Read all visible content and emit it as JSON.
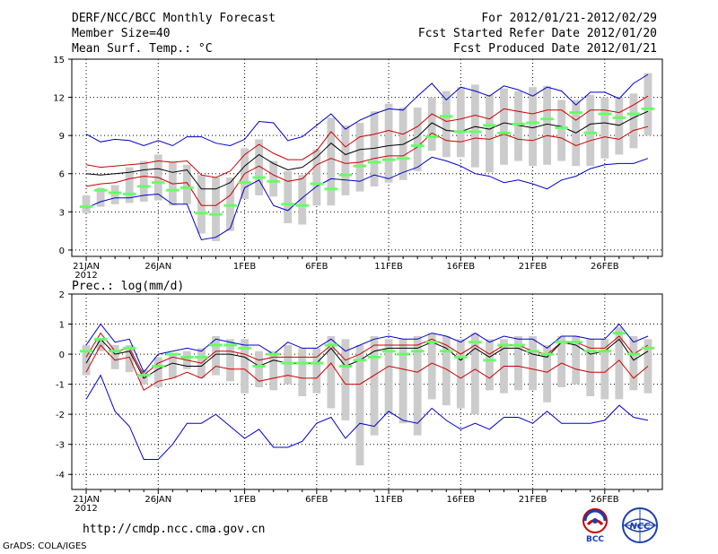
{
  "header": {
    "title": "DERF/NCC/BCC Monthly Forecast",
    "member_size": "Member Size=40",
    "variable1": "Mean Surf. Temp.: °C",
    "period": "For 2012/01/21-2012/02/29",
    "started": "Fcst Started Refer Date 2012/01/20",
    "produced": "Fcst Produced Date 2012/01/21"
  },
  "variable2": "Prec.: log(mm/d)",
  "footer": {
    "url": "http://cmdp.ncc.cma.gov.cn",
    "credit": "GrADS: COLA/IGES"
  },
  "logos": {
    "left": "BCC",
    "right": "NCC"
  },
  "colors": {
    "envelope": "#0000cc",
    "spread": "#cc0000",
    "mean": "#000000",
    "box": "#cccccc",
    "median": "#66ff66",
    "grid": "#000000"
  },
  "chart_data": [
    {
      "type": "ensemble-boxplot",
      "title": "Mean Surf. Temp.: °C",
      "ylim": [
        -0.5,
        15
      ],
      "yticks": [
        0,
        3,
        6,
        9,
        12,
        15
      ],
      "xlabels": [
        "21JAN",
        "26JAN",
        "1FEB",
        "6FEB",
        "11FEB",
        "16FEB",
        "21FEB",
        "26FEB"
      ],
      "xlabel_index": [
        0,
        5,
        11,
        16,
        21,
        26,
        31,
        36
      ],
      "year_label": "2012",
      "days": 40,
      "max": [
        9.1,
        8.5,
        8.7,
        8.6,
        8.2,
        8.6,
        8.2,
        8.9,
        8.9,
        8.4,
        8.2,
        8.7,
        10.1,
        10.0,
        8.6,
        8.9,
        9.8,
        10.7,
        9.5,
        10.2,
        10.7,
        11.1,
        11.0,
        12.1,
        13.1,
        11.8,
        12.8,
        12.5,
        12.1,
        12.9,
        12.6,
        12.1,
        12.8,
        12.5,
        11.4,
        12.4,
        12.4,
        11.9,
        13.1,
        13.8
      ],
      "upper": [
        6.7,
        6.5,
        6.6,
        6.7,
        6.8,
        7.0,
        6.9,
        7.0,
        5.9,
        5.7,
        6.2,
        7.5,
        8.3,
        7.6,
        7.1,
        7.1,
        7.8,
        9.3,
        8.1,
        8.9,
        9.1,
        9.4,
        9.1,
        9.7,
        10.7,
        10.1,
        10.3,
        10.6,
        10.3,
        11.1,
        10.9,
        10.7,
        11.0,
        11.0,
        10.2,
        11.0,
        11.0,
        10.8,
        11.4,
        12.1
      ],
      "mean": [
        6.0,
        5.9,
        6.0,
        6.1,
        6.3,
        6.4,
        6.1,
        6.3,
        4.8,
        4.8,
        5.3,
        6.6,
        7.5,
        6.8,
        6.3,
        6.5,
        7.3,
        8.4,
        7.5,
        7.9,
        8.0,
        8.2,
        8.3,
        8.9,
        10.0,
        9.4,
        9.3,
        9.7,
        9.5,
        10.0,
        9.8,
        9.6,
        9.9,
        9.7,
        9.2,
        9.9,
        10.0,
        9.8,
        10.4,
        10.9
      ],
      "lower": [
        5.0,
        5.2,
        5.3,
        5.6,
        5.8,
        5.7,
        5.2,
        5.3,
        3.5,
        3.5,
        4.3,
        6.0,
        6.6,
        5.9,
        5.4,
        5.6,
        6.7,
        7.2,
        6.8,
        6.9,
        7.2,
        7.4,
        7.4,
        8.1,
        9.2,
        8.6,
        8.5,
        8.8,
        8.7,
        9.1,
        8.7,
        8.6,
        9.0,
        8.8,
        8.2,
        8.6,
        8.9,
        8.7,
        9.4,
        9.7
      ],
      "min": [
        3.3,
        3.8,
        4.1,
        4.1,
        4.3,
        4.4,
        3.6,
        3.6,
        0.8,
        1.0,
        1.7,
        4.9,
        5.5,
        3.5,
        3.1,
        4.1,
        5.0,
        5.6,
        5.5,
        5.4,
        5.9,
        5.6,
        6.1,
        6.5,
        7.3,
        7.0,
        6.6,
        6.0,
        5.8,
        5.3,
        5.5,
        5.2,
        4.8,
        5.5,
        5.8,
        6.4,
        6.7,
        6.8,
        6.8,
        7.2
      ],
      "box_top": [
        4.3,
        4.9,
        5.1,
        6.5,
        7.0,
        7.5,
        6.9,
        6.7,
        5.9,
        5.7,
        5.7,
        8.0,
        8.7,
        7.0,
        6.2,
        5.9,
        7.9,
        10.4,
        9.8,
        10.0,
        10.9,
        11.5,
        11.2,
        11.2,
        12.0,
        12.5,
        12.8,
        13.0,
        12.2,
        12.7,
        12.5,
        12.8,
        12.9,
        11.8,
        11.8,
        12.2,
        12.0,
        12.0,
        12.3,
        13.9
      ],
      "box_bottom": [
        2.9,
        3.4,
        3.6,
        3.7,
        3.8,
        3.9,
        3.5,
        3.6,
        1.3,
        0.7,
        1.5,
        4.0,
        4.3,
        4.2,
        2.1,
        2.0,
        3.5,
        3.5,
        4.3,
        4.6,
        5.0,
        5.3,
        5.5,
        6.2,
        7.8,
        7.3,
        7.3,
        6.5,
        6.1,
        6.7,
        7.0,
        6.6,
        6.7,
        7.0,
        6.6,
        6.6,
        7.2,
        7.5,
        8.0,
        9.0
      ],
      "median": [
        3.4,
        4.7,
        4.5,
        4.4,
        5.0,
        5.3,
        4.7,
        4.9,
        2.9,
        2.8,
        3.5,
        5.3,
        5.7,
        5.4,
        3.6,
        3.5,
        5.2,
        4.8,
        5.9,
        6.6,
        6.9,
        7.1,
        7.2,
        8.2,
        8.9,
        10.5,
        9.3,
        9.3,
        9.8,
        9.2,
        9.9,
        10.0,
        10.3,
        9.6,
        10.8,
        9.2,
        10.7,
        10.4,
        10.7,
        11.1
      ]
    },
    {
      "type": "ensemble-boxplot",
      "title": "Prec.: log(mm/d)",
      "ylim": [
        -4.5,
        2
      ],
      "yticks": [
        -4,
        -3,
        -2,
        -1,
        0,
        1,
        2
      ],
      "xlabels": [
        "21JAN",
        "26JAN",
        "1FEB",
        "6FEB",
        "11FEB",
        "16FEB",
        "21FEB",
        "26FEB"
      ],
      "xlabel_index": [
        0,
        5,
        11,
        16,
        21,
        26,
        31,
        36
      ],
      "year_label": "2012",
      "days": 40,
      "max": [
        0.3,
        1.0,
        0.4,
        0.5,
        -0.6,
        0.0,
        0.1,
        0.2,
        0.1,
        0.5,
        0.4,
        0.3,
        0.3,
        0.0,
        0.4,
        0.2,
        0.2,
        0.5,
        0.1,
        0.3,
        0.5,
        0.6,
        0.5,
        0.5,
        0.7,
        0.6,
        0.4,
        0.7,
        0.4,
        0.6,
        0.5,
        0.5,
        0.2,
        0.6,
        0.6,
        0.5,
        0.5,
        1.0,
        0.4,
        0.6
      ],
      "upper": [
        -0.1,
        0.7,
        0.1,
        0.2,
        -0.7,
        -0.3,
        -0.1,
        -0.2,
        -0.3,
        0.1,
        0.1,
        0.0,
        -0.2,
        -0.1,
        -0.1,
        -0.1,
        -0.1,
        0.3,
        -0.2,
        0.0,
        0.3,
        0.3,
        0.3,
        0.3,
        0.5,
        0.3,
        0.0,
        0.3,
        0.0,
        0.3,
        0.3,
        0.1,
        0.0,
        0.4,
        0.4,
        0.2,
        0.2,
        0.6,
        0.0,
        0.3
      ],
      "mean": [
        -0.3,
        0.5,
        0.0,
        0.1,
        -0.8,
        -0.5,
        -0.3,
        -0.4,
        -0.4,
        0.0,
        0.0,
        -0.1,
        -0.4,
        -0.2,
        -0.3,
        -0.3,
        -0.3,
        0.2,
        -0.4,
        -0.2,
        0.1,
        0.2,
        0.2,
        0.2,
        0.4,
        0.2,
        -0.2,
        0.2,
        -0.1,
        0.2,
        0.2,
        0.0,
        -0.1,
        0.4,
        0.3,
        0.0,
        0.1,
        0.5,
        -0.2,
        0.1
      ],
      "lower": [
        -0.6,
        0.3,
        -0.2,
        -0.1,
        -1.2,
        -0.9,
        -0.8,
        -0.6,
        -0.8,
        -0.4,
        -0.5,
        -0.5,
        -0.9,
        -0.8,
        -0.7,
        -0.8,
        -0.8,
        -0.3,
        -1.0,
        -1.0,
        -0.7,
        -0.4,
        -0.5,
        -0.6,
        -0.3,
        -0.5,
        -0.8,
        -0.5,
        -0.8,
        -0.4,
        -0.4,
        -0.5,
        -0.6,
        -0.3,
        -0.5,
        -0.6,
        -0.6,
        -0.2,
        -0.8,
        -0.4
      ],
      "min": [
        -1.5,
        -0.7,
        -1.9,
        -2.4,
        -3.5,
        -3.5,
        -3.0,
        -2.3,
        -2.3,
        -2.0,
        -2.4,
        -2.8,
        -2.5,
        -3.1,
        -3.1,
        -2.9,
        -2.3,
        -2.1,
        -2.8,
        -2.3,
        -2.4,
        -1.9,
        -2.2,
        -2.3,
        -1.8,
        -2.2,
        -2.5,
        -2.3,
        -2.5,
        -2.1,
        -2.1,
        -2.3,
        -1.9,
        -2.3,
        -2.3,
        -2.3,
        -2.2,
        -1.7,
        -2.1,
        -2.2
      ],
      "box_top": [
        0.3,
        0.5,
        0.3,
        0.3,
        -0.5,
        -0.1,
        0.0,
        0.1,
        0.2,
        0.6,
        0.5,
        0.5,
        0.1,
        0.1,
        0.3,
        0.2,
        0.2,
        0.6,
        0.5,
        0.3,
        0.6,
        0.5,
        0.5,
        0.6,
        0.7,
        0.6,
        0.5,
        0.7,
        0.5,
        0.5,
        0.6,
        0.6,
        0.3,
        0.6,
        0.6,
        0.5,
        0.5,
        0.9,
        0.6,
        0.5
      ],
      "box_bottom": [
        -0.7,
        0.1,
        -0.5,
        -0.6,
        -1.0,
        -1.1,
        -0.8,
        -0.5,
        -0.8,
        -0.7,
        -0.9,
        -1.3,
        -1.1,
        -1.2,
        -1.0,
        -1.4,
        -1.3,
        -1.8,
        -2.2,
        -3.7,
        -2.7,
        -2.0,
        -2.3,
        -2.7,
        -1.5,
        -1.7,
        -1.8,
        -2.0,
        -1.2,
        -1.3,
        -1.2,
        -1.2,
        -1.6,
        -1.1,
        -1.0,
        -1.4,
        -1.5,
        -1.5,
        -1.2,
        -1.3
      ],
      "median": [
        0.1,
        0.5,
        0.1,
        0.2,
        -0.7,
        -0.4,
        0.0,
        -0.1,
        -0.1,
        0.3,
        0.3,
        0.2,
        -0.4,
        0.0,
        -0.3,
        -0.3,
        -0.3,
        0.3,
        -0.4,
        -0.2,
        -0.1,
        0.1,
        0.0,
        0.1,
        0.4,
        0.1,
        -0.1,
        0.4,
        -0.2,
        0.3,
        0.3,
        0.1,
        0.0,
        0.4,
        0.4,
        0.1,
        0.1,
        0.7,
        0.0,
        0.2
      ]
    }
  ]
}
